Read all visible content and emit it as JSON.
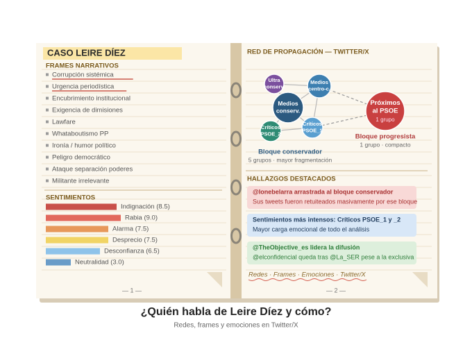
{
  "header": {
    "title": "¿Quién habla de Leire Díez y cómo?",
    "subtitle": "Redes, frames y emociones en Twitter/X"
  },
  "left_page": {
    "title": "CASO LEIRE DÍEZ",
    "frames": {
      "heading": "FRAMES NARRATIVOS",
      "items": [
        {
          "text": "Corrupción sistémica",
          "highlight": true
        },
        {
          "text": "Urgencia periodística",
          "highlight": true
        },
        {
          "text": "Encubrimiento institucional",
          "highlight": false
        },
        {
          "text": "Exigencia de dimisiones",
          "highlight": false
        },
        {
          "text": "Lawfare",
          "highlight": false
        },
        {
          "text": "Whataboutismo PP",
          "highlight": false
        },
        {
          "text": "Ironía / humor político",
          "highlight": false
        },
        {
          "text": "Peligro democrático",
          "highlight": false
        },
        {
          "text": "Ataque separación poderes",
          "highlight": false
        },
        {
          "text": "Militante irrelevante",
          "highlight": false
        }
      ]
    },
    "sentiments": {
      "heading": "SENTIMIENTOS",
      "values": [
        8.5,
        9.0,
        7.5,
        7.5,
        6.5,
        3.0
      ],
      "value_labels": [
        "Indignación (8.5)",
        "Rabia (9.0)",
        "Alarma (7.5)",
        "Desprecio (7.5)",
        "Desconfianza (6.5)",
        "Neutralidad (3.0)"
      ],
      "colors": [
        "#c9504a",
        "#e2695d",
        "#e7985b",
        "#f1d465",
        "#8ec3ea",
        "#6a9cc8"
      ]
    },
    "page_number": "— 1 —"
  },
  "right_page": {
    "network": {
      "heading": "RED DE PROPAGACIÓN — TWITTER/X",
      "nodes": [
        {
          "label": [
            "Ultra",
            "conserv."
          ],
          "color": "#7b4f9e"
        },
        {
          "label": [
            "Medios",
            "centro-c."
          ],
          "color": "#3d7fb0"
        },
        {
          "label": [
            "Medios",
            "conserv."
          ],
          "color": "#2c5a80"
        },
        {
          "label": [
            "Críticos",
            "PSOE_2"
          ],
          "color": "#2e8b74"
        },
        {
          "label": [
            "Críticos",
            "PSOE_1"
          ],
          "color": "#5a9fd0"
        },
        {
          "label": [
            "Próximos",
            "al PSOE"
          ],
          "sub": "1 grupo",
          "color": "#c94040"
        }
      ],
      "groups": [
        {
          "title": "Bloque conservador",
          "note": "5 grupos · mayor fragmentación",
          "color": "#2c5a80"
        },
        {
          "title": "Bloque progresista",
          "note": "1 grupo · compacto",
          "color": "#b03a3a"
        }
      ]
    },
    "findings": {
      "heading": "HALLAZGOS DESTACADOS",
      "cards": [
        {
          "title": "@Ionebelarra arrastrada al bloque conservador",
          "text": "Sus tweets fueron retuiteados masivamente por ese bloque",
          "color": "#a83232",
          "background": "#f8d9d7"
        },
        {
          "title": "Sentimientos más intensos: Críticos PSOE_1 y _2",
          "text": "Mayor carga emocional de todo el análisis",
          "color": "#1f3b5c",
          "background": "#d8e7f7"
        },
        {
          "title": "@TheObjective_es lidera la difusión",
          "text": "@elconfidencial queda tras @La_SER pese a la exclusiva",
          "color": "#2e7d3a",
          "background": "#ddefdc"
        }
      ]
    },
    "footer": "Redes · Frames · Emociones · Twitter/X",
    "page_number": "— 2 —"
  }
}
